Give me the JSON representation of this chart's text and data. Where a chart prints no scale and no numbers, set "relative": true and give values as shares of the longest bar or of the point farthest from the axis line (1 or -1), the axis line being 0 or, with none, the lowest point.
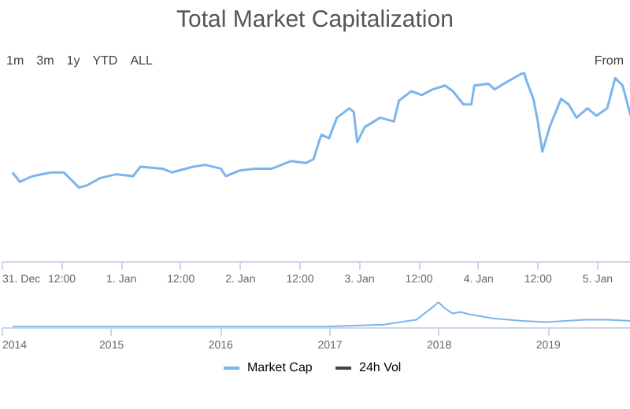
{
  "chart_data": [
    {
      "type": "line",
      "title": "Total Market Capitalization",
      "annotations": [
        "1m",
        "3m",
        "1y",
        "YTD",
        "ALL",
        "From"
      ],
      "relative": true,
      "legend": "bottom",
      "x": [
        "2017-12-31T02:12",
        "2017-12-31T03:42",
        "2017-12-31T06:12",
        "2017-12-31T10:00",
        "2017-12-31T12:30",
        "2017-12-31T13:42",
        "2017-12-31T15:36",
        "2017-12-31T17:06",
        "2017-12-31T19:54",
        "2017-12-31T23:06",
        "2018-01-01T02:30",
        "2018-01-01T04:00",
        "2018-01-01T08:24",
        "2018-01-01T10:18",
        "2018-01-01T14:36",
        "2018-01-01T17:06",
        "2018-01-01T20:12",
        "2018-01-01T21:12",
        "2018-01-02T00:00",
        "2018-01-02T03:06",
        "2018-01-02T06:30",
        "2018-01-02T10:18",
        "2018-01-02T13:24",
        "2018-01-02T14:54",
        "2018-01-02T16:12",
        "2018-01-02T16:30",
        "2018-01-02T18:00",
        "2018-01-02T19:36",
        "2018-01-02T22:06",
        "2018-01-02T23:00",
        "2018-01-02T23:42",
        "2018-01-03T01:12",
        "2018-01-03T04:18",
        "2018-01-03T07:06",
        "2018-01-03T08:06",
        "2018-01-03T10:36",
        "2018-01-03T12:42",
        "2018-01-03T14:54",
        "2018-01-03T17:24",
        "2018-01-03T19:00",
        "2018-01-03T21:06",
        "2018-01-03T22:42",
        "2018-01-03T23:18",
        "2018-01-04T02:06",
        "2018-01-04T03:24",
        "2018-01-04T05:54",
        "2018-01-04T09:18",
        "2018-01-04T09:54",
        "2018-01-04T11:12",
        "2018-01-04T12:06",
        "2018-01-04T13:00",
        "2018-01-04T14:36",
        "2018-01-04T16:48",
        "2018-01-04T18:18",
        "2018-01-04T19:54",
        "2018-01-04T22:06",
        "2018-01-04T23:54",
        "2018-01-05T02:06",
        "2018-01-05T03:42",
        "2018-01-05T05:12",
        "2018-01-05T06:48"
      ],
      "xlim": [
        "2017-12-31T00:00",
        "2018-01-05T07:00"
      ],
      "xticks": [
        {
          "value": "2017-12-31T00:00",
          "label": "31. Dec"
        },
        {
          "value": "2017-12-31T12:00",
          "label": "12:00"
        },
        {
          "value": "2018-01-01T00:00",
          "label": "1. Jan"
        },
        {
          "value": "2018-01-01T12:00",
          "label": "12:00"
        },
        {
          "value": "2018-01-02T00:00",
          "label": "2. Jan"
        },
        {
          "value": "2018-01-02T12:00",
          "label": "12:00"
        },
        {
          "value": "2018-01-03T00:00",
          "label": "3. Jan"
        },
        {
          "value": "2018-01-03T12:00",
          "label": "12:00"
        },
        {
          "value": "2018-01-04T00:00",
          "label": "4. Jan"
        },
        {
          "value": "2018-01-04T12:00",
          "label": "12:00"
        },
        {
          "value": "2018-01-05T00:00",
          "label": "5. Jan"
        }
      ],
      "series": [
        {
          "name": "Market Cap",
          "color": "#7cb5ec",
          "values": [
            0.47,
            0.42,
            0.45,
            0.47,
            0.47,
            0.44,
            0.39,
            0.4,
            0.44,
            0.46,
            0.45,
            0.5,
            0.49,
            0.47,
            0.5,
            0.51,
            0.49,
            0.45,
            0.48,
            0.49,
            0.49,
            0.53,
            0.52,
            0.54,
            0.65,
            0.67,
            0.65,
            0.76,
            0.81,
            0.79,
            0.63,
            0.71,
            0.76,
            0.74,
            0.85,
            0.9,
            0.88,
            0.91,
            0.93,
            0.9,
            0.83,
            0.83,
            0.93,
            0.94,
            0.91,
            0.95,
            1,
            0.95,
            0.86,
            0.74,
            0.58,
            0.72,
            0.86,
            0.83,
            0.76,
            0.81,
            0.77,
            0.81,
            0.97,
            0.93,
            0.77
          ]
        },
        {
          "name": "24h Vol",
          "color": "#434348",
          "values": [
            null,
            null,
            null,
            null,
            null,
            null,
            null,
            null,
            null,
            null,
            null,
            null,
            null,
            null,
            null,
            null,
            null,
            null,
            null,
            null,
            null,
            null,
            null,
            null,
            null,
            null,
            null,
            null,
            null,
            null,
            null,
            null,
            null,
            null,
            null,
            null,
            null,
            null,
            null,
            null,
            null,
            null,
            null,
            null,
            null,
            null,
            null,
            null,
            null,
            null,
            null,
            null,
            null,
            null,
            null,
            null,
            null,
            null,
            null,
            null,
            null
          ]
        }
      ]
    },
    {
      "type": "line",
      "relative": true,
      "x": [
        2014.1,
        2016.2,
        2017.0,
        2017.5,
        2017.8,
        2017.95,
        2018.0,
        2018.06,
        2018.13,
        2018.2,
        2018.3,
        2018.5,
        2018.77,
        2018.99,
        2019.34,
        2019.55,
        2019.77
      ],
      "xlim": [
        2014,
        2019.77
      ],
      "xticks": [
        2014,
        2015,
        2016,
        2017,
        2018,
        2019
      ],
      "series": [
        {
          "color": "#7cb5ec",
          "values": [
            0.02,
            0.02,
            0.03,
            0.1,
            0.3,
            0.8,
            1,
            0.75,
            0.55,
            0.6,
            0.5,
            0.35,
            0.25,
            0.2,
            0.3,
            0.3,
            0.25
          ]
        }
      ]
    }
  ]
}
